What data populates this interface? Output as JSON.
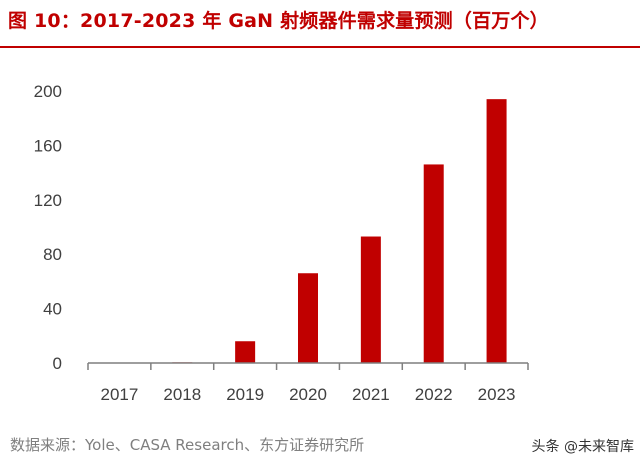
{
  "title": "图 10：2017-2023 年 GaN 射频器件需求量预测（百万个）",
  "source": "数据来源：Yole、CASA Research、东方证券研究所",
  "watermark": "头条 @未来智库",
  "colors": {
    "bar": "#c00000",
    "title": "#c00000",
    "axis": "#7f7f7f",
    "text": "#404040"
  },
  "chart_data": {
    "type": "bar",
    "title": "图 10：2017-2023 年 GaN 射频器件需求量预测（百万个）",
    "categories": [
      "2017",
      "2018",
      "2019",
      "2020",
      "2021",
      "2022",
      "2023"
    ],
    "values": [
      0,
      0.5,
      16,
      66,
      93,
      146,
      194
    ],
    "ylim": [
      0,
      200
    ],
    "yticks": [
      0,
      40,
      80,
      120,
      160,
      200
    ],
    "xlabel": "",
    "ylabel": "",
    "grid": false,
    "legend": "none"
  }
}
